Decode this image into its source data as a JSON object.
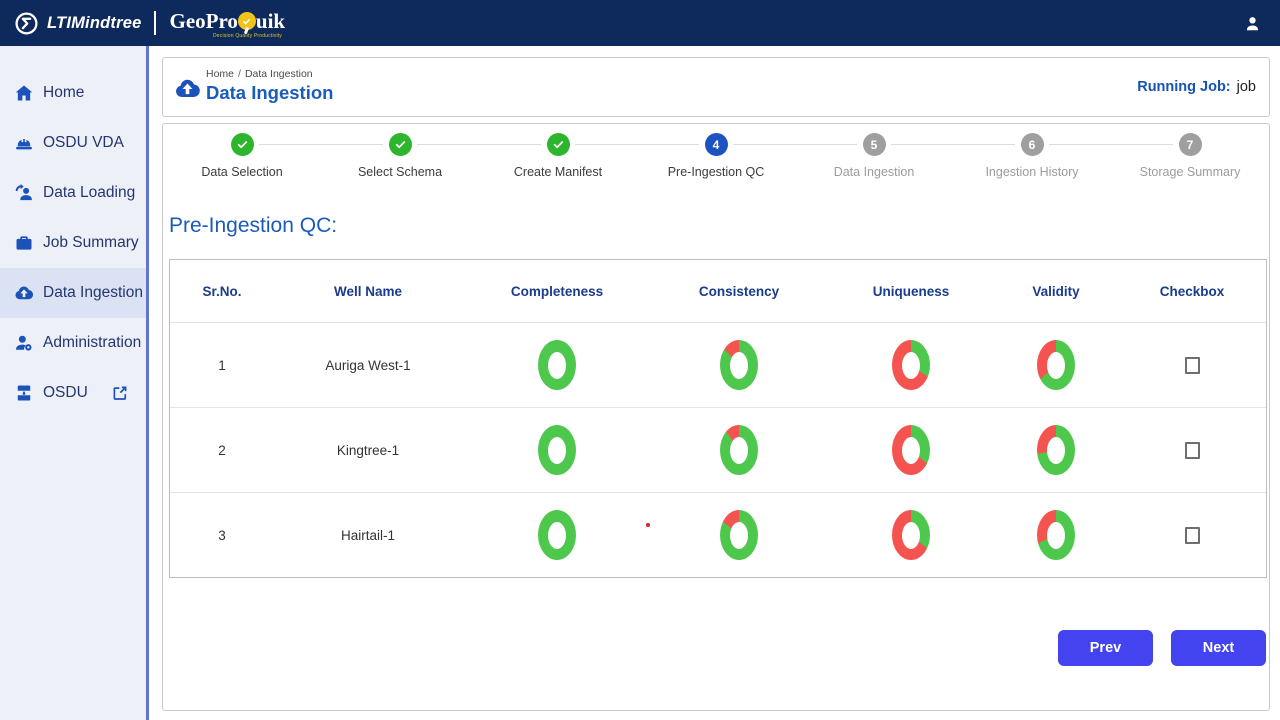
{
  "navbar": {
    "brand": "LTIMindtree",
    "product": {
      "part1": "Geo",
      "part2": "Pro",
      "part3": "uik",
      "tagline": "Decision Quality Productivity"
    }
  },
  "sidebar": {
    "items": [
      {
        "label": "Home",
        "icon": "home",
        "active": false
      },
      {
        "label": "OSDU VDA",
        "icon": "hardhat",
        "active": false
      },
      {
        "label": "Data Loading",
        "icon": "user-sync",
        "active": false
      },
      {
        "label": "Job Summary",
        "icon": "briefcase",
        "active": false
      },
      {
        "label": "Data Ingestion",
        "icon": "cloud-upload",
        "active": true
      },
      {
        "label": "Administration",
        "icon": "user-gear",
        "active": false
      },
      {
        "label": "OSDU",
        "icon": "barrel",
        "active": false,
        "trailing_icon": "external-link"
      }
    ]
  },
  "header": {
    "breadcrumb": [
      "Home",
      "Data Ingestion"
    ],
    "title": "Data Ingestion",
    "running_job_label": "Running Job:",
    "running_job_value": "job"
  },
  "stepper": {
    "steps": [
      {
        "label": "Data Selection",
        "state": "done"
      },
      {
        "label": "Select Schema",
        "state": "done"
      },
      {
        "label": "Create Manifest",
        "state": "done"
      },
      {
        "label": "Pre-Ingestion QC",
        "state": "active",
        "number": 4
      },
      {
        "label": "Data Ingestion",
        "state": "todo",
        "number": 5
      },
      {
        "label": "Ingestion History",
        "state": "todo",
        "number": 6
      },
      {
        "label": "Storage Summary",
        "state": "todo",
        "number": 7
      }
    ]
  },
  "section_title": "Pre-Ingestion QC:",
  "table": {
    "columns": [
      "Sr.No.",
      "Well Name",
      "Completeness",
      "Consistency",
      "Uniqueness",
      "Validity",
      "Checkbox"
    ],
    "rows": [
      {
        "sr": "1",
        "well": "Auriga West-1",
        "checked": false,
        "donuts": {
          "completeness": {
            "green_deg": 360
          },
          "consistency": {
            "green_deg": 317
          },
          "uniqueness": {
            "green_deg": 125
          },
          "validity": {
            "green_deg": 228
          }
        }
      },
      {
        "sr": "2",
        "well": "Kingtree-1",
        "checked": false,
        "donuts": {
          "completeness": {
            "green_deg": 360
          },
          "consistency": {
            "green_deg": 325
          },
          "uniqueness": {
            "green_deg": 130
          },
          "validity": {
            "green_deg": 258
          }
        }
      },
      {
        "sr": "3",
        "well": "Hairtail-1",
        "checked": false,
        "donuts": {
          "completeness": {
            "green_deg": 360
          },
          "consistency": {
            "green_deg": 310
          },
          "uniqueness": {
            "green_deg": 130
          },
          "validity": {
            "green_deg": 245
          }
        }
      }
    ]
  },
  "buttons": {
    "prev": "Prev",
    "next": "Next"
  },
  "colors": {
    "navbar": "#0e2a5c",
    "accent_blue": "#1d53c0",
    "title_blue": "#1a5cbc",
    "donut_green": "#4dc84d",
    "donut_red": "#f4534f",
    "step_green": "#2db52d",
    "button_blue": "#4343ef",
    "header_navy": "#1b3c8c"
  }
}
